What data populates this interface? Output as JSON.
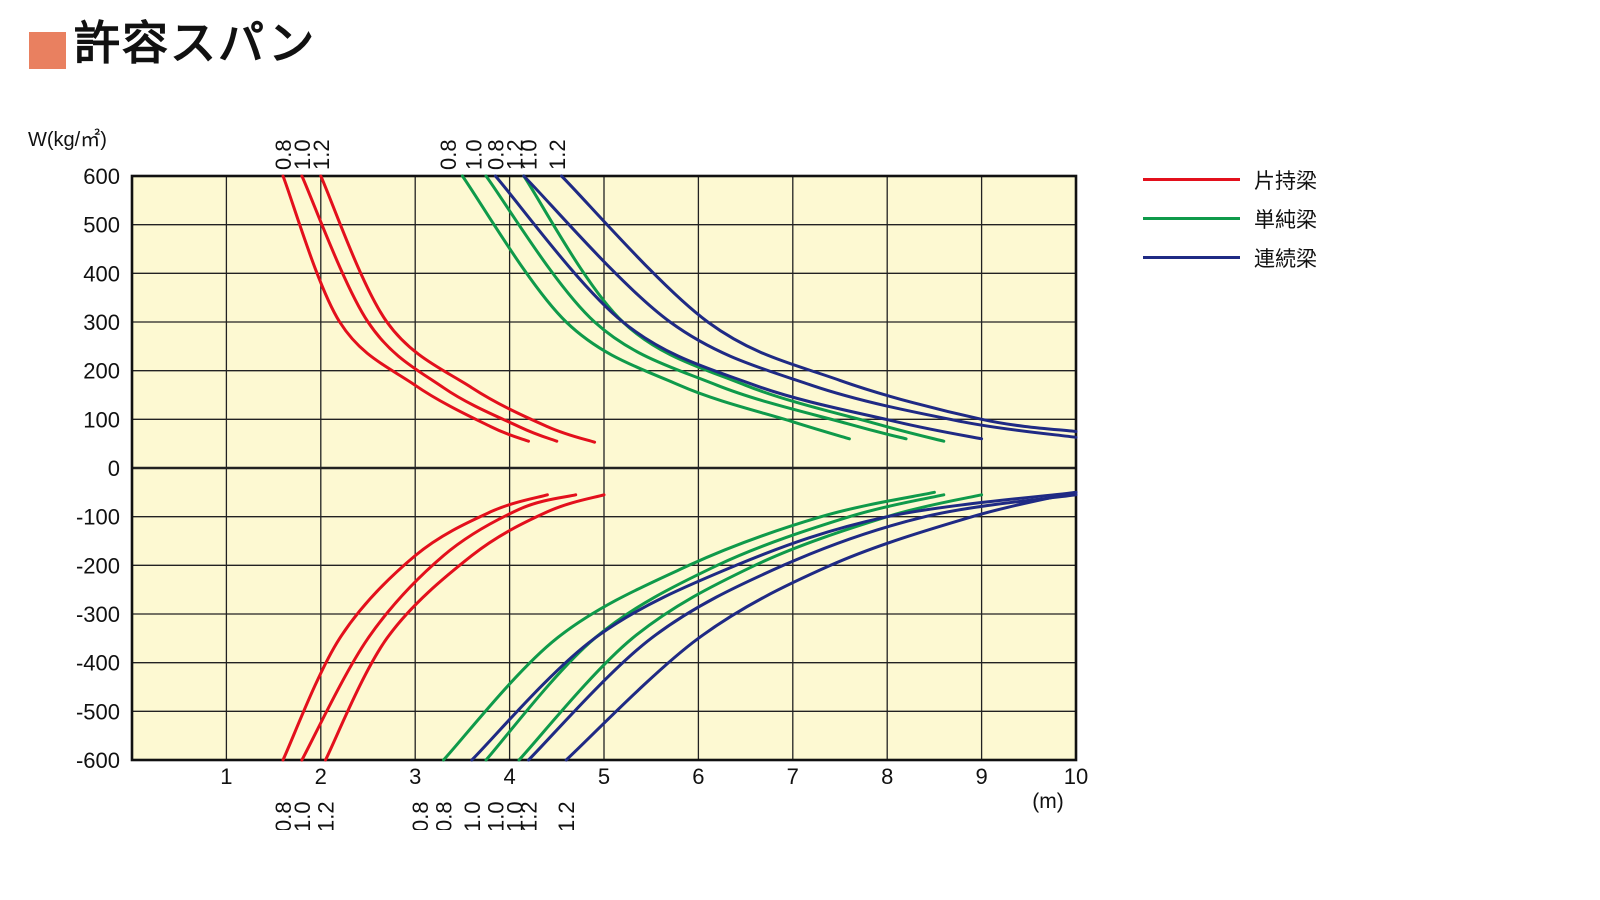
{
  "title": "許容スパン",
  "colors": {
    "title_square": "#e98060",
    "plot_bg": "#fdf9d2",
    "grid": "#222222"
  },
  "chart_data": {
    "type": "line",
    "title": "許容スパン",
    "ylabel": "W(kg/㎡)",
    "xlabel": "(m)",
    "xlim": [
      0,
      10
    ],
    "ylim": [
      -600,
      600
    ],
    "x_ticks": [
      "1",
      "2",
      "3",
      "4",
      "5",
      "6",
      "7",
      "8",
      "9",
      "10"
    ],
    "y_ticks": [
      "600",
      "500",
      "400",
      "300",
      "200",
      "100",
      "0",
      "-100",
      "-200",
      "-300",
      "-400",
      "-500",
      "-600"
    ],
    "legend": [
      {
        "name": "片持梁",
        "color": "#e3101c"
      },
      {
        "name": "単純梁",
        "color": "#0f9a4a"
      },
      {
        "name": "連続梁",
        "color": "#1f2a84"
      }
    ],
    "series": [
      {
        "group": "片持梁",
        "label": "0.8",
        "color": "#e3101c",
        "x": [
          1.6,
          2.2,
          3.0,
          3.8,
          4.2
        ],
        "y": [
          600,
          300,
          170,
          85,
          55
        ]
      },
      {
        "group": "片持梁",
        "label": "1.0",
        "color": "#e3101c",
        "x": [
          1.8,
          2.5,
          3.3,
          4.1,
          4.5
        ],
        "y": [
          600,
          300,
          165,
          85,
          55
        ]
      },
      {
        "group": "片持梁",
        "label": "1.2",
        "color": "#e3101c",
        "x": [
          2.0,
          2.7,
          3.6,
          4.4,
          4.9
        ],
        "y": [
          600,
          300,
          165,
          85,
          53
        ]
      },
      {
        "group": "単純梁",
        "label": "0.8",
        "color": "#0f9a4a",
        "x": [
          3.5,
          4.6,
          5.8,
          7.0,
          7.6
        ],
        "y": [
          600,
          300,
          170,
          95,
          60
        ]
      },
      {
        "group": "単純梁",
        "label": "1.0",
        "color": "#0f9a4a",
        "x": [
          3.75,
          4.9,
          6.2,
          7.6,
          8.2
        ],
        "y": [
          600,
          300,
          170,
          90,
          60
        ]
      },
      {
        "group": "単純梁",
        "label": "1.2",
        "color": "#0f9a4a",
        "x": [
          4.15,
          5.2,
          6.5,
          7.9,
          8.6
        ],
        "y": [
          600,
          300,
          170,
          90,
          55
        ]
      },
      {
        "group": "連続梁",
        "label": "0.8",
        "color": "#1f2a84",
        "x": [
          3.85,
          5.2,
          6.6,
          8.1,
          9.0
        ],
        "y": [
          600,
          300,
          170,
          95,
          60
        ]
      },
      {
        "group": "連続梁",
        "label": "1.0",
        "color": "#1f2a84",
        "x": [
          4.15,
          5.7,
          7.2,
          8.8,
          10.0
        ],
        "y": [
          600,
          300,
          170,
          95,
          63
        ]
      },
      {
        "group": "連続梁",
        "label": "1.2",
        "color": "#1f2a84",
        "x": [
          4.55,
          6.1,
          7.5,
          9.0,
          10.0
        ],
        "y": [
          600,
          300,
          180,
          100,
          75
        ]
      },
      {
        "group": "片持梁",
        "label": "0.8",
        "color": "#e3101c",
        "x": [
          1.6,
          2.2,
          3.0,
          3.8,
          4.4
        ],
        "y": [
          -600,
          -350,
          -180,
          -90,
          -55
        ]
      },
      {
        "group": "片持梁",
        "label": "1.0",
        "color": "#e3101c",
        "x": [
          1.8,
          2.5,
          3.3,
          4.1,
          4.7
        ],
        "y": [
          -600,
          -350,
          -180,
          -85,
          -55
        ]
      },
      {
        "group": "片持梁",
        "label": "1.2",
        "color": "#e3101c",
        "x": [
          2.05,
          2.7,
          3.6,
          4.4,
          5.0
        ],
        "y": [
          -600,
          -350,
          -180,
          -90,
          -55
        ]
      },
      {
        "group": "単純梁",
        "label": "0.8",
        "color": "#0f9a4a",
        "x": [
          3.3,
          4.5,
          5.9,
          7.3,
          8.5
        ],
        "y": [
          -600,
          -350,
          -200,
          -100,
          -50
        ]
      },
      {
        "group": "単純梁",
        "label": "1.0",
        "color": "#0f9a4a",
        "x": [
          3.75,
          4.9,
          6.2,
          7.6,
          8.6
        ],
        "y": [
          -600,
          -350,
          -200,
          -100,
          -55
        ]
      },
      {
        "group": "単純梁",
        "label": "1.2",
        "color": "#0f9a4a",
        "x": [
          4.1,
          5.3,
          6.6,
          8.0,
          9.0
        ],
        "y": [
          -600,
          -350,
          -200,
          -100,
          -55
        ]
      },
      {
        "group": "連続梁",
        "label": "0.8",
        "color": "#1f2a84",
        "x": [
          3.6,
          4.9,
          6.4,
          8.0,
          10.0
        ],
        "y": [
          -600,
          -350,
          -200,
          -100,
          -50
        ]
      },
      {
        "group": "連続梁",
        "label": "1.0",
        "color": "#1f2a84",
        "x": [
          4.2,
          5.5,
          6.9,
          8.4,
          10.0
        ],
        "y": [
          -600,
          -350,
          -200,
          -100,
          -55
        ]
      },
      {
        "group": "連続梁",
        "label": "1.2",
        "color": "#1f2a84",
        "x": [
          4.6,
          6.0,
          7.4,
          8.9,
          10.0
        ],
        "y": [
          -600,
          -350,
          -200,
          -100,
          -50
        ]
      }
    ],
    "top_curve_labels": [
      {
        "text": "0.8",
        "x": 1.6
      },
      {
        "text": "1.0",
        "x": 1.8
      },
      {
        "text": "1.2",
        "x": 2.0
      },
      {
        "text": "0.8",
        "x": 3.35
      },
      {
        "text": "1.0",
        "x": 3.62
      },
      {
        "text": "0.8",
        "x": 3.85
      },
      {
        "text": "1.2",
        "x": 4.05
      },
      {
        "text": "1.0",
        "x": 4.2
      },
      {
        "text": "1.2",
        "x": 4.5
      }
    ],
    "bottom_curve_labels": [
      {
        "text": "0.8",
        "x": 1.6
      },
      {
        "text": "1.0",
        "x": 1.8
      },
      {
        "text": "1.2",
        "x": 2.05
      },
      {
        "text": "0.8",
        "x": 3.05
      },
      {
        "text": "0.8",
        "x": 3.3
      },
      {
        "text": "1.0",
        "x": 3.6
      },
      {
        "text": "1.0",
        "x": 3.85
      },
      {
        "text": "1.0",
        "x": 4.05
      },
      {
        "text": "1.2",
        "x": 4.2
      },
      {
        "text": "1.2",
        "x": 4.6
      }
    ]
  }
}
